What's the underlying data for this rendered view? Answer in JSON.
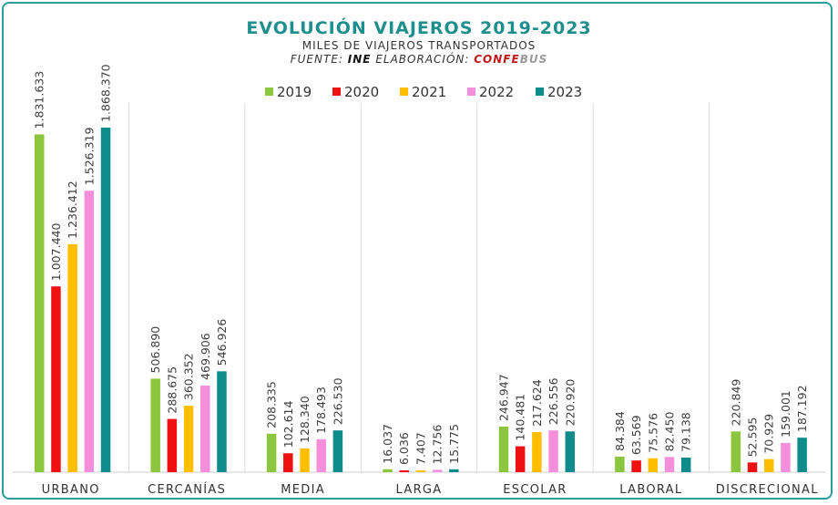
{
  "header": {
    "title": "EVOLUCIÓN VIAJEROS 2019-2023",
    "subtitle": "MILES DE VIAJEROS TRANSPORTADOS",
    "source_prefix": "FUENTE:",
    "source_org": "INE",
    "source_mid": "ELABORACIÓN:",
    "source_brand_a": "CONFE",
    "source_brand_b": "BUS"
  },
  "colors": {
    "accent": "#1e8f8c",
    "frame": "#2a9d9a",
    "brand_red": "#c01818",
    "brand_gray": "#9a9a9a"
  },
  "chart_data": {
    "type": "bar",
    "title": "EVOLUCIÓN VIAJEROS 2019-2023",
    "subtitle": "MILES DE VIAJEROS TRANSPORTADOS",
    "xlabel": "",
    "ylabel": "",
    "ylim": [
      0,
      1900000
    ],
    "grid": "vertical separators between categories",
    "legend": "top",
    "categories": [
      "URBANO",
      "CERCANÍAS",
      "MEDIA",
      "LARGA",
      "ESCOLAR",
      "LABORAL",
      "DISCRECIONAL"
    ],
    "series": [
      {
        "name": "2019",
        "color": "#8cc63f",
        "values": [
          1831633,
          506890,
          208335,
          16037,
          246947,
          84384,
          220849
        ],
        "labels": [
          "1.831.633",
          "506.890",
          "208.335",
          "16.037",
          "246.947",
          "84.384",
          "220.849"
        ]
      },
      {
        "name": "2020",
        "color": "#ee1111",
        "values": [
          1007440,
          288675,
          102614,
          6036,
          140481,
          63569,
          52595
        ],
        "labels": [
          "1.007.440",
          "288.675",
          "102.614",
          "6.036",
          "140.481",
          "63.569",
          "52.595"
        ]
      },
      {
        "name": "2021",
        "color": "#ffbf00",
        "values": [
          1236412,
          360352,
          128340,
          7407,
          217624,
          75576,
          70929
        ],
        "labels": [
          "1.236.412",
          "360.352",
          "128.340",
          "7.407",
          "217.624",
          "75.576",
          "70.929"
        ]
      },
      {
        "name": "2022",
        "color": "#f58fdc",
        "values": [
          1526319,
          469906,
          178493,
          12756,
          226556,
          82450,
          159001
        ],
        "labels": [
          "1.526.319",
          "469.906",
          "178.493",
          "12.756",
          "226.556",
          "82.450",
          "159.001"
        ]
      },
      {
        "name": "2023",
        "color": "#0e8c8c",
        "values": [
          1868370,
          546926,
          226530,
          15775,
          220920,
          79138,
          187192
        ],
        "labels": [
          "1.868.370",
          "546.926",
          "226.530",
          "15.775",
          "220.920",
          "79.138",
          "187.192"
        ]
      }
    ]
  }
}
